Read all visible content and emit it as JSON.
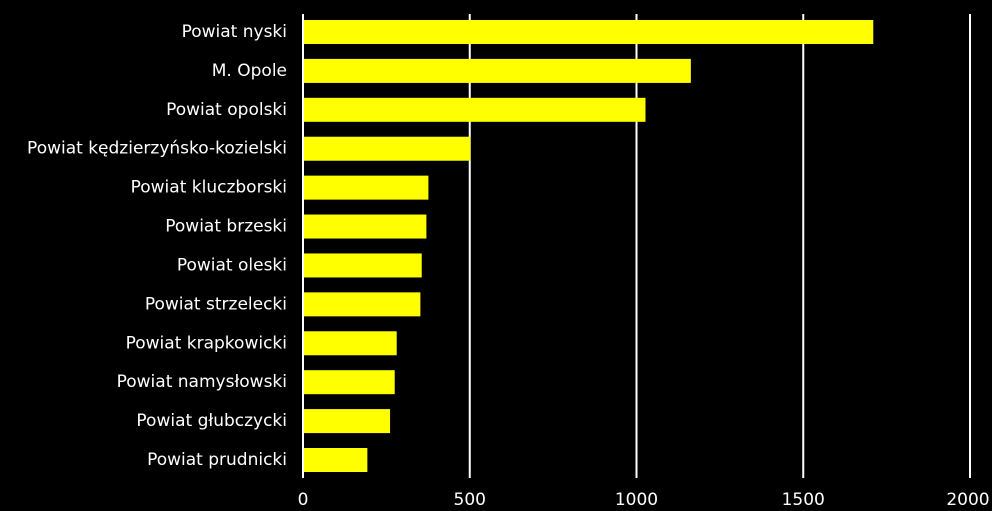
{
  "chart_data": {
    "type": "bar",
    "orientation": "horizontal",
    "categories": [
      "Powiat nyski",
      "M. Opole",
      "Powiat opolski",
      "Powiat kędzierzyńsko-kozielski",
      "Powiat kluczborski",
      "Powiat brzeski",
      "Powiat oleski",
      "Powiat strzelecki",
      "Powiat krapkowicki",
      "Powiat namysłowski",
      "Powiat głubczycki",
      "Powiat prudnicki"
    ],
    "values": [
      1710,
      1163,
      1027,
      502,
      376,
      370,
      356,
      352,
      281,
      275,
      261,
      193
    ],
    "xlim": [
      0,
      2000
    ],
    "xticks": [
      0,
      500,
      1000,
      1500,
      2000
    ],
    "title": "",
    "xlabel": "",
    "ylabel": "",
    "grid": "vertical",
    "legend": "none",
    "colors": {
      "bar": "#ffff00",
      "background": "#000000",
      "text": "#ffffff",
      "grid": "#ffffff"
    }
  }
}
